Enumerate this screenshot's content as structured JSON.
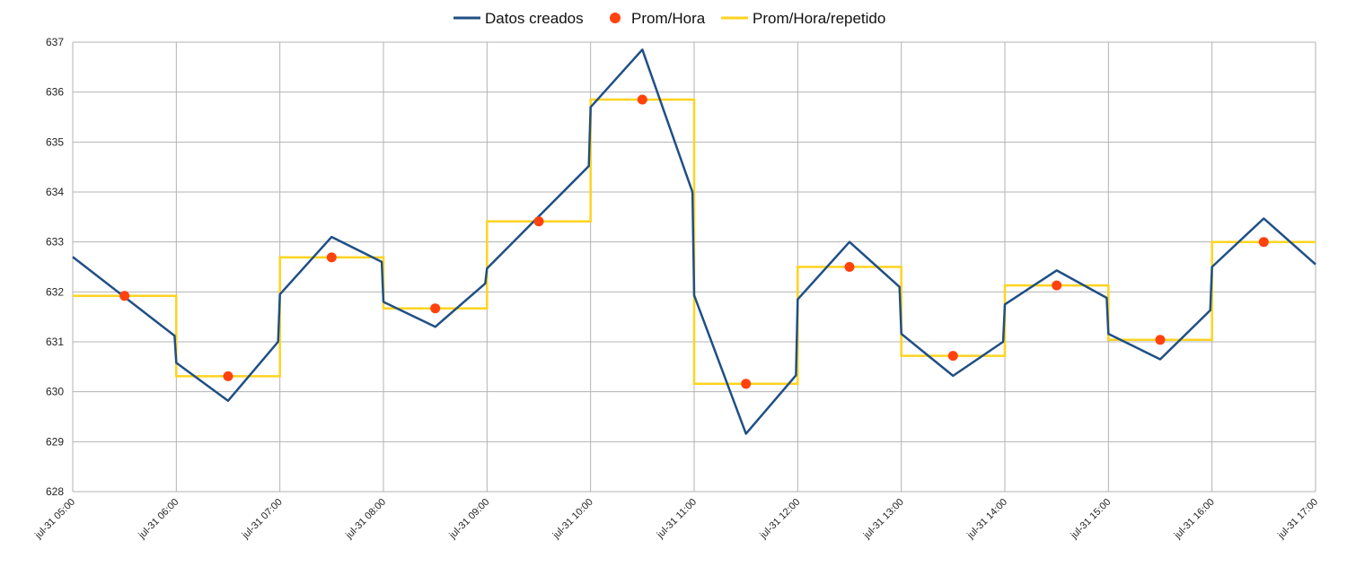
{
  "chart_data": {
    "type": "line",
    "title": "",
    "xlabel": "",
    "ylabel": "",
    "ylim": [
      628,
      637
    ],
    "yticks": [
      628,
      629,
      630,
      631,
      632,
      633,
      634,
      635,
      636,
      637
    ],
    "xlim": [
      "2023-07-31T05:00",
      "2023-07-31T17:00"
    ],
    "xticks": [
      "jul-31 05:00",
      "jul-31 06:00",
      "jul-31 07:00",
      "jul-31 08:00",
      "jul-31 09:00",
      "jul-31 10:00",
      "jul-31 11:00",
      "jul-31 12:00",
      "jul-31 13:00",
      "jul-31 14:00",
      "jul-31 15:00",
      "jul-31 16:00",
      "jul-31 17:00"
    ],
    "grid": true,
    "legend": "top-center",
    "colors": {
      "datos": "#1f4f85",
      "prom": "#ff420e",
      "repetido": "#ffd320"
    },
    "series": [
      {
        "name": "Datos creados",
        "type": "line",
        "color": "#1f4f85",
        "x": [
          "2023-07-31T05:00",
          "2023-07-31T05:59",
          "2023-07-31T06:00",
          "2023-07-31T06:30",
          "2023-07-31T06:59",
          "2023-07-31T07:00",
          "2023-07-31T07:30",
          "2023-07-31T07:59",
          "2023-07-31T08:00",
          "2023-07-31T08:30",
          "2023-07-31T08:59",
          "2023-07-31T09:00",
          "2023-07-31T09:59",
          "2023-07-31T10:00",
          "2023-07-31T10:30",
          "2023-07-31T10:59",
          "2023-07-31T11:00",
          "2023-07-31T11:30",
          "2023-07-31T11:59",
          "2023-07-31T12:00",
          "2023-07-31T12:30",
          "2023-07-31T12:59",
          "2023-07-31T13:00",
          "2023-07-31T13:30",
          "2023-07-31T13:59",
          "2023-07-31T14:00",
          "2023-07-31T14:30",
          "2023-07-31T14:59",
          "2023-07-31T15:00",
          "2023-07-31T15:30",
          "2023-07-31T15:59",
          "2023-07-31T16:00",
          "2023-07-31T16:30",
          "2023-07-31T17:00"
        ],
        "y": [
          632.7,
          631.12,
          630.58,
          629.82,
          631.0,
          631.95,
          633.1,
          632.6,
          631.8,
          631.3,
          632.17,
          632.47,
          634.52,
          635.7,
          636.85,
          634.0,
          631.93,
          629.16,
          630.33,
          631.85,
          633.0,
          632.1,
          631.16,
          630.32,
          631.0,
          631.75,
          632.43,
          631.88,
          631.16,
          630.65,
          631.63,
          632.5,
          633.47,
          632.55
        ]
      },
      {
        "name": "Prom/Hora",
        "type": "scatter",
        "color": "#ff420e",
        "x": [
          "2023-07-31T05:30",
          "2023-07-31T06:30",
          "2023-07-31T07:30",
          "2023-07-31T08:30",
          "2023-07-31T09:30",
          "2023-07-31T10:30",
          "2023-07-31T11:30",
          "2023-07-31T12:30",
          "2023-07-31T13:30",
          "2023-07-31T14:30",
          "2023-07-31T15:30",
          "2023-07-31T16:30"
        ],
        "y": [
          631.92,
          630.31,
          632.69,
          631.67,
          633.41,
          635.85,
          630.16,
          632.5,
          630.72,
          632.13,
          631.04,
          633.0
        ]
      },
      {
        "name": "Prom/Hora/repetido",
        "type": "step",
        "color": "#ffd320",
        "x": [
          "2023-07-31T05:00",
          "2023-07-31T06:00",
          "2023-07-31T07:00",
          "2023-07-31T08:00",
          "2023-07-31T09:00",
          "2023-07-31T10:00",
          "2023-07-31T11:00",
          "2023-07-31T12:00",
          "2023-07-31T13:00",
          "2023-07-31T14:00",
          "2023-07-31T15:00",
          "2023-07-31T16:00"
        ],
        "y": [
          631.92,
          630.31,
          632.69,
          631.67,
          633.41,
          635.85,
          630.16,
          632.5,
          630.72,
          632.13,
          631.04,
          633.0
        ],
        "x_end": "2023-07-31T17:00"
      }
    ]
  }
}
